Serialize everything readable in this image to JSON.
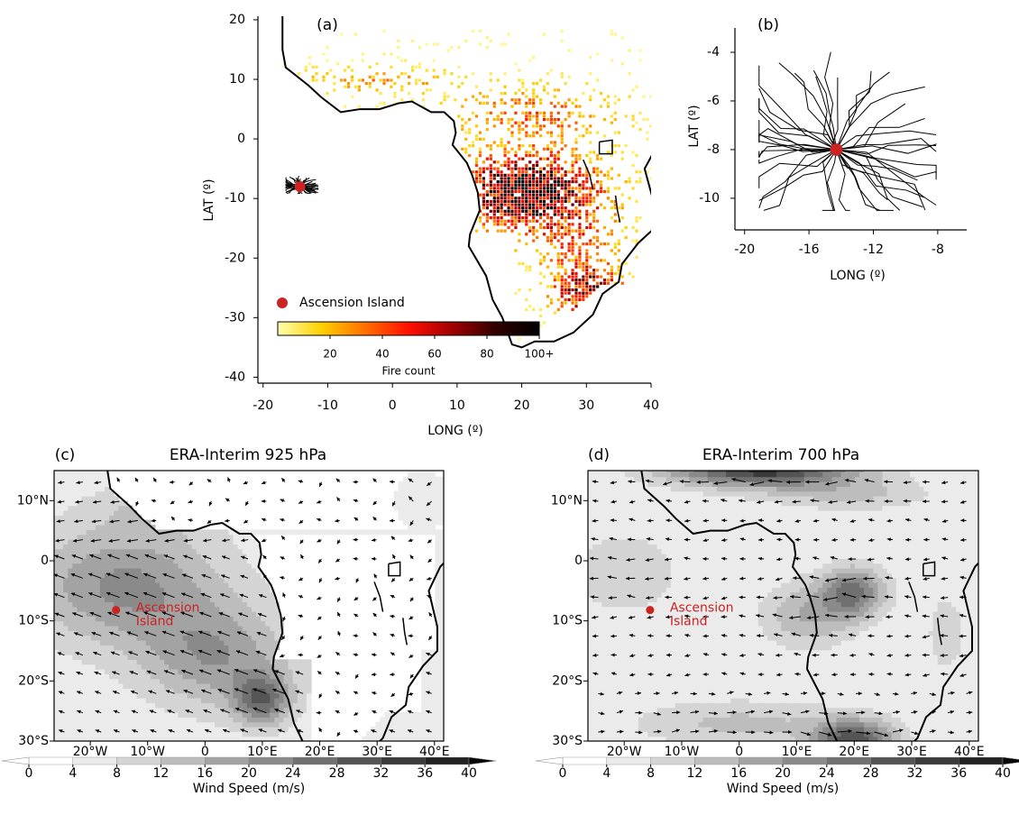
{
  "chart_data": [
    {
      "type": "map",
      "label": "(a)",
      "xlabel": "LONG (º)",
      "ylabel": "LAT (º)",
      "xlim": [
        -20.8,
        40
      ],
      "ylim": [
        -41,
        20.6
      ],
      "xticks": [
        -20,
        -10,
        0,
        10,
        20,
        30,
        40
      ],
      "yticks": [
        -40,
        -30,
        -20,
        -10,
        0,
        10,
        20
      ],
      "points": [
        {
          "name": "Ascension Island",
          "color": "#cc2222",
          "x": -14.3,
          "y": -8
        }
      ],
      "colorbar": {
        "label": "Fire count",
        "lim": [
          0,
          100
        ],
        "ticks": [
          20,
          40,
          60,
          80,
          {
            "value": 100,
            "label": "100+"
          }
        ],
        "colors": [
          "#ffffb0",
          "#ffd000",
          "#ff7000",
          "#ff1000",
          "#a00000",
          "#300000",
          "#000000"
        ]
      }
    },
    {
      "type": "trajectory",
      "label": "(b)",
      "xlabel": "LONG (º)",
      "ylabel": "LAT (º)",
      "xlim": [
        -20.6,
        -6.2
      ],
      "ylim": [
        -11.3,
        -3
      ],
      "xticks": [
        -20,
        -16,
        -12,
        -8
      ],
      "yticks": [
        -10,
        -8,
        -6,
        -4
      ],
      "points": [
        {
          "color": "#cc2222",
          "x": -14.3,
          "y": -8
        }
      ]
    },
    {
      "type": "wind",
      "label": "(c)",
      "title": "ERA-Interim 925 hPa",
      "xlim": [
        -26.3,
        41.6
      ],
      "ylim": [
        -30,
        15
      ],
      "xticks": [
        {
          "value": -20,
          "label": "20°W"
        },
        {
          "value": -10,
          "label": "10°W"
        },
        0,
        {
          "value": 10,
          "label": "10°E"
        },
        {
          "value": 20,
          "label": "20°E"
        },
        {
          "value": 30,
          "label": "30°E"
        },
        {
          "value": 40,
          "label": "40°E"
        }
      ],
      "yticks": [
        {
          "value": 10,
          "label": "10°N"
        },
        0,
        {
          "value": -10,
          "label": "10°S"
        },
        {
          "value": -20,
          "label": "20°S"
        },
        {
          "value": -30,
          "label": "30°S"
        }
      ],
      "annotation": {
        "text": [
          "Ascension",
          "Island"
        ],
        "color": "#cc2222",
        "x": -15.5,
        "y": -8.2
      },
      "colorbar": {
        "label": "Wind Speed (m/s)",
        "lim": [
          0,
          40
        ],
        "ticks": [
          0,
          4,
          8,
          12,
          16,
          20,
          24,
          28,
          32,
          36,
          40
        ],
        "colors": [
          "#ffffff",
          "#ebebeb",
          "#d4d4d4",
          "#bdbdbd",
          "#a3a3a3",
          "#8a8a8a",
          "#707070",
          "#555555",
          "#3b3b3b",
          "#222222",
          "#080808"
        ]
      }
    },
    {
      "type": "wind",
      "label": "(d)",
      "title": "ERA-Interim 700 hPa",
      "xlim": [
        -26.3,
        41.6
      ],
      "ylim": [
        -30,
        15
      ],
      "xticks": [
        {
          "value": -20,
          "label": "20°W"
        },
        {
          "value": -10,
          "label": "10°W"
        },
        0,
        {
          "value": 10,
          "label": "10°E"
        },
        {
          "value": 20,
          "label": "20°E"
        },
        {
          "value": 30,
          "label": "30°E"
        },
        {
          "value": 40,
          "label": "40°E"
        }
      ],
      "yticks": [
        {
          "value": 10,
          "label": "10°N"
        },
        0,
        {
          "value": -10,
          "label": "10°S"
        },
        {
          "value": -20,
          "label": "20°S"
        },
        {
          "value": -30,
          "label": "30°S"
        }
      ],
      "annotation": {
        "text": [
          "Ascension",
          "Island"
        ],
        "color": "#cc2222",
        "x": -15.5,
        "y": -8.2
      },
      "colorbar": {
        "label": "Wind Speed (m/s)",
        "lim": [
          0,
          40
        ],
        "ticks": [
          0,
          4,
          8,
          12,
          16,
          20,
          24,
          28,
          32,
          36,
          40
        ],
        "colors": [
          "#ffffff",
          "#ebebeb",
          "#d4d4d4",
          "#bdbdbd",
          "#a3a3a3",
          "#8a8a8a",
          "#707070",
          "#555555",
          "#3b3b3b",
          "#222222",
          "#080808"
        ]
      }
    }
  ]
}
